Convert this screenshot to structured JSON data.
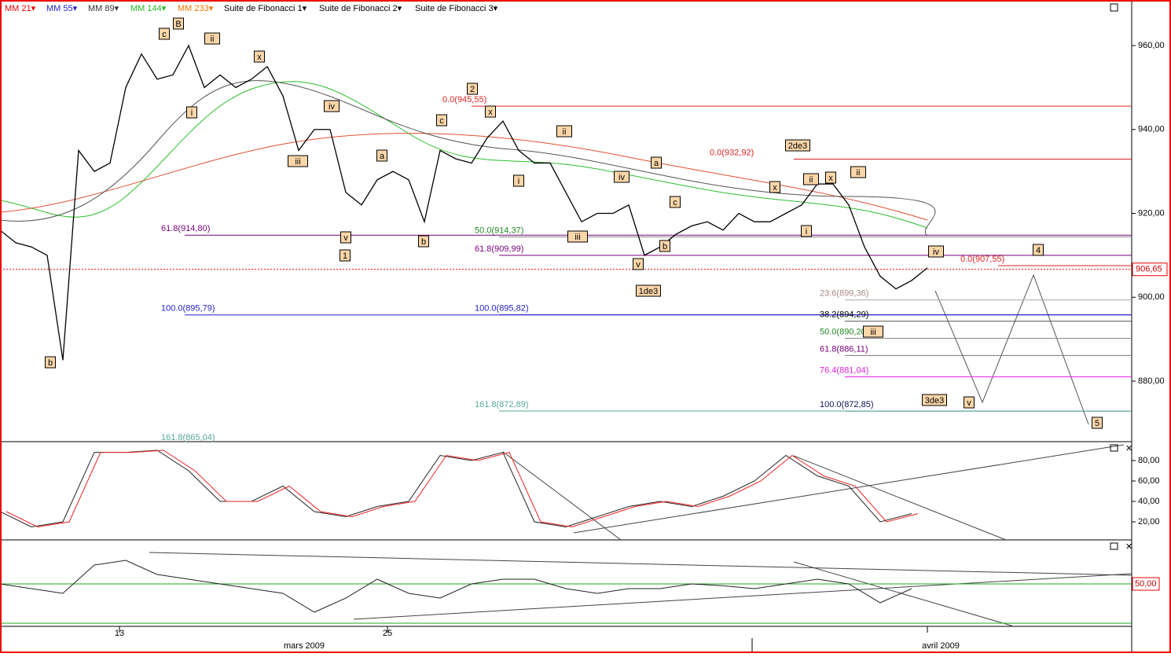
{
  "toolbar": [
    "MM 21▾",
    "MM 55▾",
    "MM 89▾",
    "MM 144▾",
    "MM 233▾",
    "Suite de Fibonacci 1▾",
    "Suite de Fibonacci 2▾",
    "Suite de Fibonacci 3▾"
  ],
  "price_axis": {
    "ticks": [
      {
        "value": 960,
        "label": "960,00"
      },
      {
        "value": 940,
        "label": "940,00"
      },
      {
        "value": 920,
        "label": "920,00"
      },
      {
        "value": 900,
        "label": "900,00"
      },
      {
        "value": 880,
        "label": "880,00"
      }
    ],
    "last": {
      "value": 906.65,
      "label": "906,65"
    }
  },
  "fib_levels": [
    {
      "price": 945.55,
      "label": "0.0(945,55)"
    },
    {
      "price": 932.92,
      "label": "0.0(932,92)"
    },
    {
      "price": 907.55,
      "label": "0.0(907,55)"
    },
    {
      "price": 914.8,
      "label": "61.8(914,80)"
    },
    {
      "price": 909.99,
      "label": "61.8(909,99)"
    },
    {
      "price": 886.11,
      "label": "61.8(886,11)"
    },
    {
      "price": 895.79,
      "label": "100.0(895,79)"
    },
    {
      "price": 895.82,
      "label": "100.0(895,82)"
    },
    {
      "price": 872.85,
      "label": "100.0(872,85)"
    },
    {
      "price": 914.37,
      "label": "50.0(914,37)"
    },
    {
      "price": 890.2,
      "label": "50.0(890,20)"
    },
    {
      "price": 872.89,
      "label": "161.8(872,89)"
    },
    {
      "price": 865.04,
      "label": "161.8(865,04)"
    },
    {
      "price": 899.36,
      "label": "23.6(899,36)"
    },
    {
      "price": 894.29,
      "label": "38.2(894,29)"
    },
    {
      "price": 881.04,
      "label": "76.4(881,04)"
    }
  ],
  "waves": [
    "b",
    "c",
    "B",
    "ii",
    "x",
    "i",
    "iii",
    "iv",
    "v",
    "1",
    "a",
    "b",
    "2",
    "c",
    "x",
    "ii",
    "i",
    "iii",
    "iv",
    "a",
    "v",
    "b",
    "c",
    "1de3",
    "2de3",
    "x",
    "ii",
    "x",
    "ii",
    "i",
    "iv",
    "iii",
    "4",
    "3de3",
    "v",
    "5"
  ],
  "price_series": [
    916,
    913,
    912,
    910,
    885,
    935,
    930,
    932,
    950,
    958,
    952,
    953,
    960,
    950,
    953,
    950,
    952,
    955,
    948,
    935,
    940,
    940,
    925,
    922,
    928,
    930,
    928,
    918,
    935,
    933,
    932,
    938,
    942,
    935,
    932,
    932,
    925,
    918,
    920,
    920,
    922,
    910,
    912,
    915,
    917,
    918,
    916,
    920,
    918,
    918,
    920,
    922,
    927,
    927,
    922,
    912,
    905,
    902,
    904,
    907
  ],
  "osc1": {
    "ticks": [
      {
        "value": 80,
        "label": "80,00"
      },
      {
        "value": 60,
        "label": "60,00"
      },
      {
        "value": 40,
        "label": "40,00"
      },
      {
        "value": 20,
        "label": "20,00"
      }
    ],
    "values": [
      30,
      15,
      20,
      88,
      88,
      90,
      70,
      40,
      40,
      55,
      30,
      25,
      35,
      40,
      85,
      80,
      88,
      20,
      15,
      25,
      35,
      40,
      35,
      45,
      60,
      85,
      65,
      55,
      20,
      28
    ]
  },
  "osc2": {
    "ticks": [
      {
        "value": 50,
        "label": "50,00"
      }
    ],
    "values": [
      50,
      45,
      40,
      70,
      75,
      60,
      55,
      50,
      45,
      40,
      20,
      35,
      55,
      40,
      35,
      50,
      55,
      55,
      45,
      40,
      45,
      45,
      50,
      48,
      45,
      50,
      55,
      50,
      30,
      45
    ]
  },
  "dates": [
    "13",
    "25",
    "mars 2009",
    "avril 2009"
  ]
}
